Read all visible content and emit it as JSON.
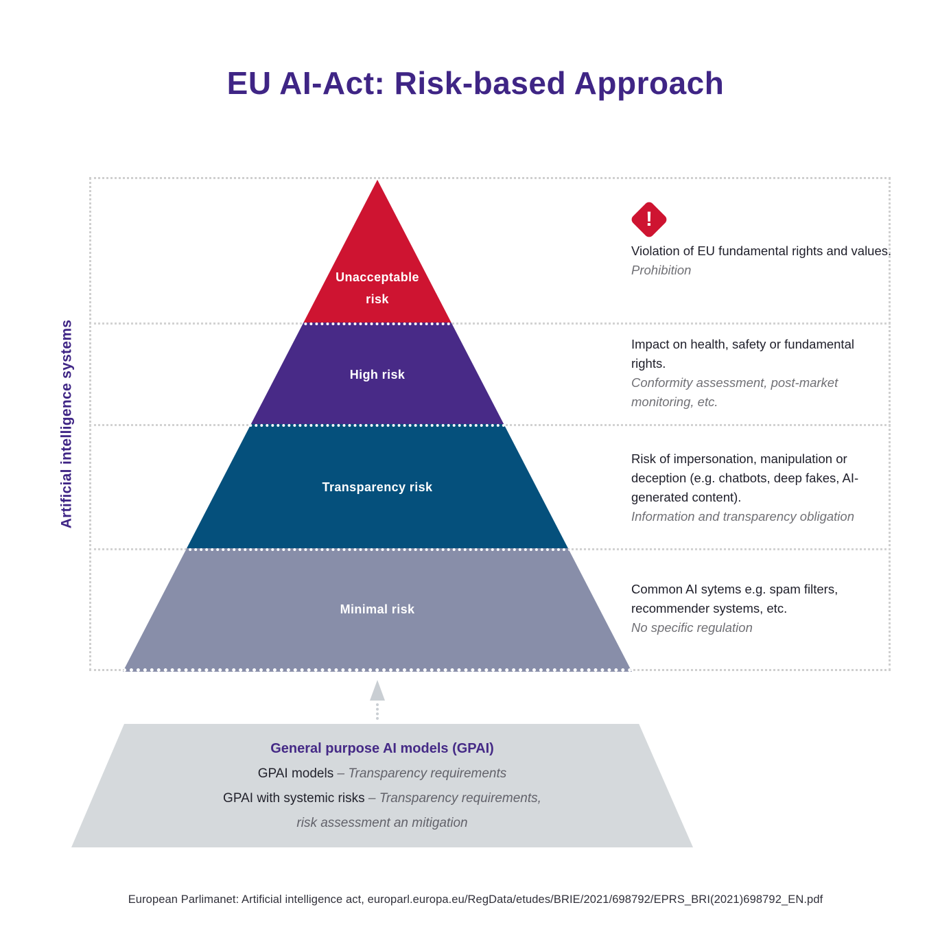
{
  "title": "EU AI-Act: Risk-based Approach",
  "y_axis_label": "Artificial intelligence systems",
  "warning_icon": {
    "glyph": "!"
  },
  "colors": {
    "title_purple": "#3f2585",
    "unacceptable_red": "#ce1431",
    "high_purple": "#482a87",
    "transparency_blue": "#05507c",
    "minimal_gray": "#888ea9",
    "gpai_gray": "#d5d9dc"
  },
  "pyramid": {
    "levels": [
      {
        "label": "Unacceptable risk",
        "color": "#ce1431",
        "description": "Violation of EU fundamental rights and values.",
        "obligation": "Prohibition"
      },
      {
        "label": "High risk",
        "color": "#482a87",
        "description": "Impact on health, safety or fundamental rights.",
        "obligation": "Conformity assessment, post-market monitoring, etc."
      },
      {
        "label": "Transparency risk",
        "color": "#05507c",
        "description": "Risk of impersonation, manipulation or deception (e.g. chatbots, deep fakes, AI-generated content).",
        "obligation": "Information and transparency obligation"
      },
      {
        "label": "Minimal risk",
        "color": "#888ea9",
        "description": "Common AI sytems e.g. spam filters, recommender systems, etc.",
        "obligation": "No specific regulation"
      }
    ]
  },
  "gpai": {
    "title": "General purpose AI models (GPAI)",
    "row1_lead": "GPAI models",
    "row1_detail": " – Transparency requirements",
    "row2_lead": "GPAI with systemic risks",
    "row2_detail": " – Transparency requirements,",
    "row3_detail": "risk assessment an mitigation"
  },
  "footer": "European Parlimanet: Artificial intelligence act, europarl.europa.eu/RegData/etudes/BRIE/2021/698792/EPRS_BRI(2021)698792_EN.pdf"
}
